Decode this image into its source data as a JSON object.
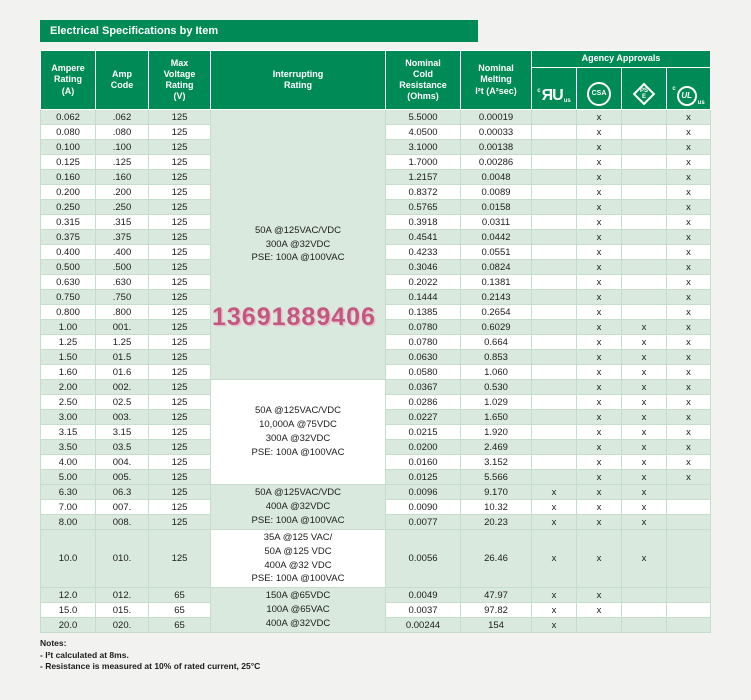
{
  "page": {
    "title": "Electrical Specifications by Item",
    "watermark": "13691889406",
    "notes": {
      "heading": "Notes:",
      "items": [
        "- I²t calculated at 8ms.",
        "- Resistance is measured at 10% of rated current, 25°C"
      ]
    }
  },
  "colors": {
    "header_green": "#008a55",
    "row_green": "#d9e9de",
    "watermark_pink": "#c4577f"
  },
  "table": {
    "headers": {
      "ampere": "Ampere\nRating\n(A)",
      "amp_code": "Amp\nCode",
      "max_voltage": "Max\nVoltage\nRating\n(V)",
      "interrupting": "Interrupting\nRating",
      "resistance": "Nominal\nCold\nResistance\n(Ohms)",
      "melting": "Nominal\nMelting\nI²t (A²sec)",
      "agency": "Agency Approvals"
    },
    "agency_columns": [
      "cURus Recognized",
      "CSA Certified",
      "PSE",
      "cULus Listed"
    ],
    "icons": {
      "ul_recognized": {
        "prefix": "c",
        "main": "ЯU",
        "suffix": "us"
      },
      "csa": {
        "label": "CSA"
      },
      "pse": {
        "label": "PS\nE"
      },
      "ul_listed": {
        "prefix": "c",
        "main": "UL",
        "suffix": "us"
      }
    },
    "groups": [
      {
        "interrupting": [
          "50A @125VAC/VDC",
          "300A @32VDC",
          "PSE: 100A @100VAC"
        ],
        "tall": false,
        "rows": [
          {
            "ampere": "0.062",
            "code": ".062",
            "voltage": "125",
            "resistance": "5.5000",
            "melting": "0.00019",
            "approvals": [
              false,
              true,
              false,
              true
            ]
          },
          {
            "ampere": "0.080",
            "code": ".080",
            "voltage": "125",
            "resistance": "4.0500",
            "melting": "0.00033",
            "approvals": [
              false,
              true,
              false,
              true
            ]
          },
          {
            "ampere": "0.100",
            "code": ".100",
            "voltage": "125",
            "resistance": "3.1000",
            "melting": "0.00138",
            "approvals": [
              false,
              true,
              false,
              true
            ]
          },
          {
            "ampere": "0.125",
            "code": ".125",
            "voltage": "125",
            "resistance": "1.7000",
            "melting": "0.00286",
            "approvals": [
              false,
              true,
              false,
              true
            ]
          },
          {
            "ampere": "0.160",
            "code": ".160",
            "voltage": "125",
            "resistance": "1.2157",
            "melting": "0.0048",
            "approvals": [
              false,
              true,
              false,
              true
            ]
          },
          {
            "ampere": "0.200",
            "code": ".200",
            "voltage": "125",
            "resistance": "0.8372",
            "melting": "0.0089",
            "approvals": [
              false,
              true,
              false,
              true
            ]
          },
          {
            "ampere": "0.250",
            "code": ".250",
            "voltage": "125",
            "resistance": "0.5765",
            "melting": "0.0158",
            "approvals": [
              false,
              true,
              false,
              true
            ]
          },
          {
            "ampere": "0.315",
            "code": ".315",
            "voltage": "125",
            "resistance": "0.3918",
            "melting": "0.0311",
            "approvals": [
              false,
              true,
              false,
              true
            ]
          },
          {
            "ampere": "0.375",
            "code": ".375",
            "voltage": "125",
            "resistance": "0.4541",
            "melting": "0.0442",
            "approvals": [
              false,
              true,
              false,
              true
            ]
          },
          {
            "ampere": "0.400",
            "code": ".400",
            "voltage": "125",
            "resistance": "0.4233",
            "melting": "0.0551",
            "approvals": [
              false,
              true,
              false,
              true
            ]
          },
          {
            "ampere": "0.500",
            "code": ".500",
            "voltage": "125",
            "resistance": "0.3046",
            "melting": "0.0824",
            "approvals": [
              false,
              true,
              false,
              true
            ]
          },
          {
            "ampere": "0.630",
            "code": ".630",
            "voltage": "125",
            "resistance": "0.2022",
            "melting": "0.1381",
            "approvals": [
              false,
              true,
              false,
              true
            ]
          },
          {
            "ampere": "0.750",
            "code": ".750",
            "voltage": "125",
            "resistance": "0.1444",
            "melting": "0.2143",
            "approvals": [
              false,
              true,
              false,
              true
            ]
          },
          {
            "ampere": "0.800",
            "code": ".800",
            "voltage": "125",
            "resistance": "0.1385",
            "melting": "0.2654",
            "approvals": [
              false,
              true,
              false,
              true
            ]
          },
          {
            "ampere": "1.00",
            "code": "001.",
            "voltage": "125",
            "resistance": "0.0780",
            "melting": "0.6029",
            "approvals": [
              false,
              true,
              true,
              true
            ]
          },
          {
            "ampere": "1.25",
            "code": "1.25",
            "voltage": "125",
            "resistance": "0.0780",
            "melting": "0.664",
            "approvals": [
              false,
              true,
              true,
              true
            ]
          },
          {
            "ampere": "1.50",
            "code": "01.5",
            "voltage": "125",
            "resistance": "0.0630",
            "melting": "0.853",
            "approvals": [
              false,
              true,
              true,
              true
            ]
          },
          {
            "ampere": "1.60",
            "code": "01.6",
            "voltage": "125",
            "resistance": "0.0580",
            "melting": "1.060",
            "approvals": [
              false,
              true,
              true,
              true
            ]
          }
        ]
      },
      {
        "interrupting": [
          "50A @125VAC/VDC",
          "10,000A @75VDC",
          "300A @32VDC",
          "PSE: 100A @100VAC"
        ],
        "tall": false,
        "rows": [
          {
            "ampere": "2.00",
            "code": "002.",
            "voltage": "125",
            "resistance": "0.0367",
            "melting": "0.530",
            "approvals": [
              false,
              true,
              true,
              true
            ]
          },
          {
            "ampere": "2.50",
            "code": "02.5",
            "voltage": "125",
            "resistance": "0.0286",
            "melting": "1.029",
            "approvals": [
              false,
              true,
              true,
              true
            ]
          },
          {
            "ampere": "3.00",
            "code": "003.",
            "voltage": "125",
            "resistance": "0.0227",
            "melting": "1.650",
            "approvals": [
              false,
              true,
              true,
              true
            ]
          },
          {
            "ampere": "3.15",
            "code": "3.15",
            "voltage": "125",
            "resistance": "0.0215",
            "melting": "1.920",
            "approvals": [
              false,
              true,
              true,
              true
            ]
          },
          {
            "ampere": "3.50",
            "code": "03.5",
            "voltage": "125",
            "resistance": "0.0200",
            "melting": "2.469",
            "approvals": [
              false,
              true,
              true,
              true
            ]
          },
          {
            "ampere": "4.00",
            "code": "004.",
            "voltage": "125",
            "resistance": "0.0160",
            "melting": "3.152",
            "approvals": [
              false,
              true,
              true,
              true
            ]
          },
          {
            "ampere": "5.00",
            "code": "005.",
            "voltage": "125",
            "resistance": "0.0125",
            "melting": "5.566",
            "approvals": [
              false,
              true,
              true,
              true
            ]
          }
        ]
      },
      {
        "interrupting": [
          "50A @125VAC/VDC",
          "400A @32VDC",
          "PSE: 100A @100VAC"
        ],
        "tall": false,
        "rows": [
          {
            "ampere": "6.30",
            "code": "06.3",
            "voltage": "125",
            "resistance": "0.0096",
            "melting": "9.170",
            "approvals": [
              true,
              true,
              true,
              false
            ]
          },
          {
            "ampere": "7.00",
            "code": "007.",
            "voltage": "125",
            "resistance": "0.0090",
            "melting": "10.32",
            "approvals": [
              true,
              true,
              true,
              false
            ]
          },
          {
            "ampere": "8.00",
            "code": "008.",
            "voltage": "125",
            "resistance": "0.0077",
            "melting": "20.23",
            "approvals": [
              true,
              true,
              true,
              false
            ]
          }
        ]
      },
      {
        "interrupting": [
          "35A @125 VAC/",
          "50A @125 VDC",
          "400A @32 VDC",
          "PSE: 100A @100VAC"
        ],
        "tall": true,
        "rows": [
          {
            "ampere": "10.0",
            "code": "010.",
            "voltage": "125",
            "resistance": "0.0056",
            "melting": "26.46",
            "approvals": [
              true,
              true,
              true,
              false
            ]
          }
        ]
      },
      {
        "interrupting": [
          "150A @65VDC",
          "100A @65VAC",
          "400A @32VDC"
        ],
        "tall": false,
        "rows": [
          {
            "ampere": "12.0",
            "code": "012.",
            "voltage": "65",
            "resistance": "0.0049",
            "melting": "47.97",
            "approvals": [
              true,
              true,
              false,
              false
            ]
          },
          {
            "ampere": "15.0",
            "code": "015.",
            "voltage": "65",
            "resistance": "0.0037",
            "melting": "97.82",
            "approvals": [
              true,
              true,
              false,
              false
            ]
          },
          {
            "ampere": "20.0",
            "code": "020.",
            "voltage": "65",
            "resistance": "0.00244",
            "melting": "154",
            "approvals": [
              true,
              false,
              false,
              false
            ]
          }
        ]
      }
    ]
  }
}
